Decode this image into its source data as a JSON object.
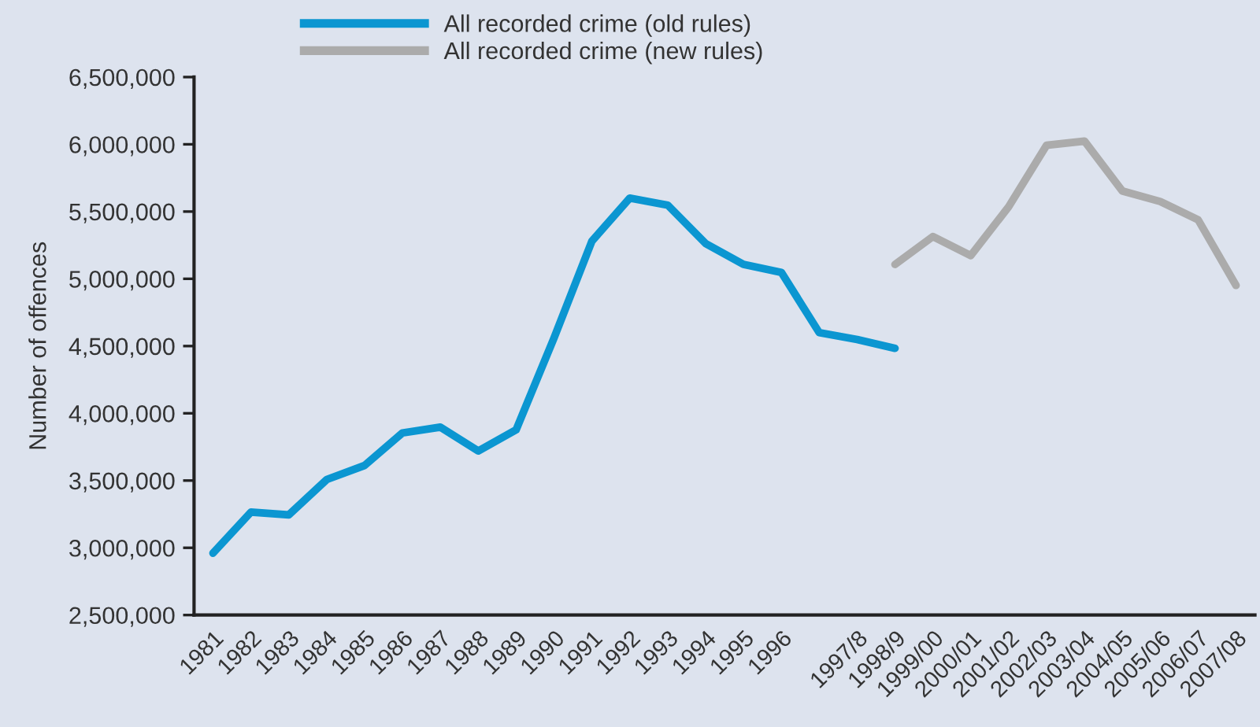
{
  "chart_data": {
    "type": "line",
    "ylabel": "Number of offences",
    "categories": [
      "1981",
      "1982",
      "1983",
      "1984",
      "1985",
      "1986",
      "1987",
      "1988",
      "1989",
      "1990",
      "1991",
      "1992",
      "1993",
      "1994",
      "1995",
      "1996",
      null,
      "1997/8",
      "1998/9",
      "1999/00",
      "2000/01",
      "2001/02",
      "2002/03",
      "2003/04",
      "2004/05",
      "2005/06",
      "2006/07",
      "2007/08"
    ],
    "series": [
      {
        "name": "All recorded crime (old rules)",
        "color": "#0b96d1",
        "values": [
          2960000,
          3265000,
          3245000,
          3507000,
          3612000,
          3854000,
          3897000,
          3720000,
          3877000,
          4560000,
          5280000,
          5600000,
          5548000,
          5263000,
          5107000,
          5048000,
          4600000,
          4549000,
          4483000,
          null,
          null,
          null,
          null,
          null,
          null,
          null,
          null,
          null
        ]
      },
      {
        "name": "All recorded crime (new rules)",
        "color": "#ababab",
        "values": [
          null,
          null,
          null,
          null,
          null,
          null,
          null,
          null,
          null,
          null,
          null,
          null,
          null,
          null,
          null,
          null,
          null,
          null,
          5107000,
          5314000,
          5173000,
          5536000,
          5993000,
          6024000,
          5653000,
          5575000,
          5439000,
          4951000
        ]
      }
    ],
    "ylim": [
      2500000,
      6500000
    ],
    "yticks": [
      {
        "value": 2500000,
        "label": "2,500,000"
      },
      {
        "value": 3000000,
        "label": "3,000,000"
      },
      {
        "value": 3500000,
        "label": "3,500,000"
      },
      {
        "value": 4000000,
        "label": "4,000,000"
      },
      {
        "value": 4500000,
        "label": "4,500,000"
      },
      {
        "value": 5000000,
        "label": "5,000,000"
      },
      {
        "value": 5500000,
        "label": "5,500,000"
      },
      {
        "value": 6000000,
        "label": "6,000,000"
      },
      {
        "value": 6500000,
        "label": "6,500,000"
      }
    ],
    "legend": "top",
    "grid": false,
    "marker": "none",
    "line_style": "solid"
  }
}
